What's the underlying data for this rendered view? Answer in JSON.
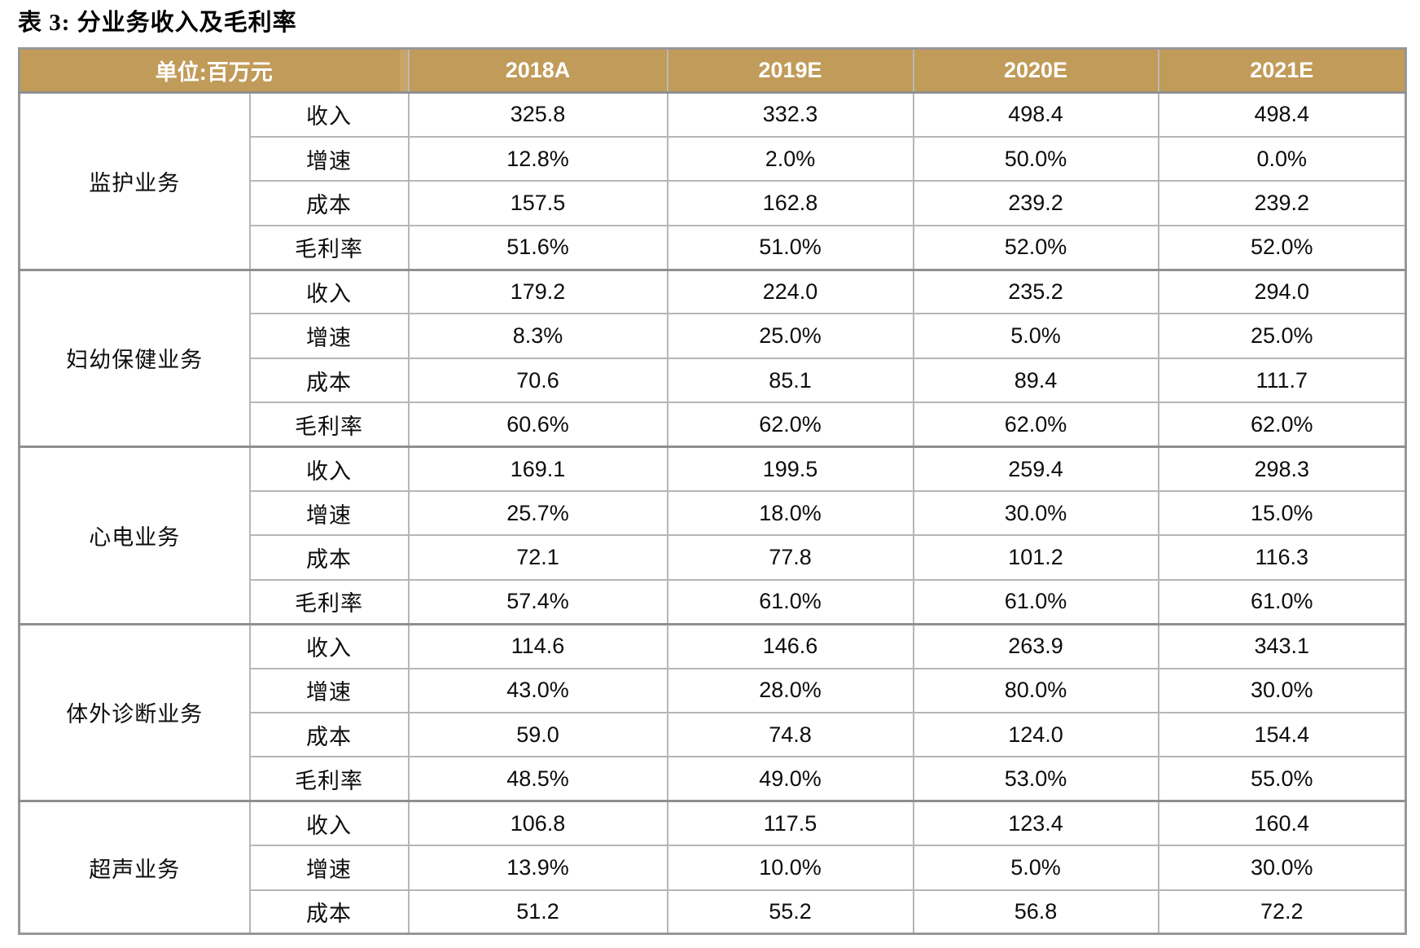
{
  "title": "表 3: 分业务收入及毛利率",
  "colors": {
    "header_bg": "#C19B59",
    "header_text": "#FFFFFF",
    "border_light": "#B6B6B6",
    "border_dark": "#8F8F8F",
    "body_text": "#0D0D0D"
  },
  "table": {
    "unit_header": "单位:百万元",
    "columns": [
      "2018A",
      "2019E",
      "2020E",
      "2021E"
    ],
    "groups": [
      {
        "name": "监护业务",
        "rows": [
          {
            "label": "收入",
            "values": [
              "325.8",
              "332.3",
              "498.4",
              "498.4"
            ]
          },
          {
            "label": "增速",
            "values": [
              "12.8%",
              "2.0%",
              "50.0%",
              "0.0%"
            ]
          },
          {
            "label": "成本",
            "values": [
              "157.5",
              "162.8",
              "239.2",
              "239.2"
            ]
          },
          {
            "label": "毛利率",
            "values": [
              "51.6%",
              "51.0%",
              "52.0%",
              "52.0%"
            ]
          }
        ]
      },
      {
        "name": "妇幼保健业务",
        "rows": [
          {
            "label": "收入",
            "values": [
              "179.2",
              "224.0",
              "235.2",
              "294.0"
            ]
          },
          {
            "label": "增速",
            "values": [
              "8.3%",
              "25.0%",
              "5.0%",
              "25.0%"
            ]
          },
          {
            "label": "成本",
            "values": [
              "70.6",
              "85.1",
              "89.4",
              "111.7"
            ]
          },
          {
            "label": "毛利率",
            "values": [
              "60.6%",
              "62.0%",
              "62.0%",
              "62.0%"
            ]
          }
        ]
      },
      {
        "name": "心电业务",
        "rows": [
          {
            "label": "收入",
            "values": [
              "169.1",
              "199.5",
              "259.4",
              "298.3"
            ]
          },
          {
            "label": "增速",
            "values": [
              "25.7%",
              "18.0%",
              "30.0%",
              "15.0%"
            ]
          },
          {
            "label": "成本",
            "values": [
              "72.1",
              "77.8",
              "101.2",
              "116.3"
            ]
          },
          {
            "label": "毛利率",
            "values": [
              "57.4%",
              "61.0%",
              "61.0%",
              "61.0%"
            ]
          }
        ]
      },
      {
        "name": "体外诊断业务",
        "rows": [
          {
            "label": "收入",
            "values": [
              "114.6",
              "146.6",
              "263.9",
              "343.1"
            ]
          },
          {
            "label": "增速",
            "values": [
              "43.0%",
              "28.0%",
              "80.0%",
              "30.0%"
            ]
          },
          {
            "label": "成本",
            "values": [
              "59.0",
              "74.8",
              "124.0",
              "154.4"
            ]
          },
          {
            "label": "毛利率",
            "values": [
              "48.5%",
              "49.0%",
              "53.0%",
              "55.0%"
            ]
          }
        ]
      },
      {
        "name": "超声业务",
        "rows": [
          {
            "label": "收入",
            "values": [
              "106.8",
              "117.5",
              "123.4",
              "160.4"
            ]
          },
          {
            "label": "增速",
            "values": [
              "13.9%",
              "10.0%",
              "5.0%",
              "30.0%"
            ]
          },
          {
            "label": "成本",
            "values": [
              "51.2",
              "55.2",
              "56.8",
              "72.2"
            ]
          }
        ]
      }
    ]
  }
}
